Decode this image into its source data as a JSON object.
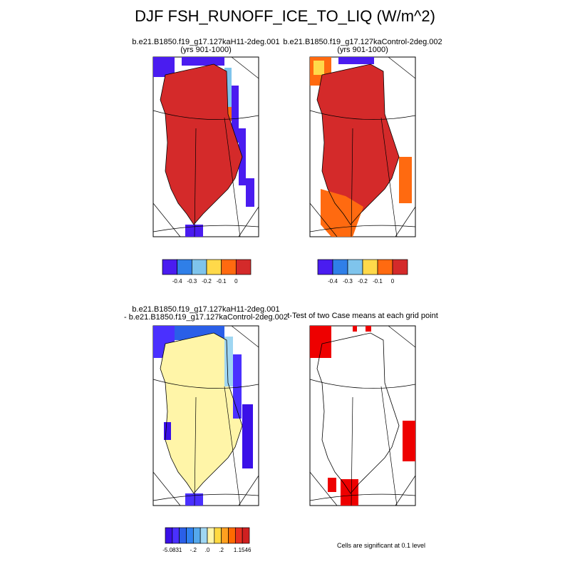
{
  "title": "DJF FSH_RUNOFF_ICE_TO_LIQ (W/m^2)",
  "panels": [
    {
      "title_lines": [
        "b.e21.B1850.f19_g17.127kaH11-2deg.001",
        "(yrs 901-1000)"
      ],
      "colorbar": {
        "colors": [
          "#4a1cf0",
          "#2f7fe8",
          "#7fc4ec",
          "#ffd94a",
          "#ff6a10",
          "#d42a2a"
        ],
        "labels": [
          "-0.4",
          "-0.3",
          "-0.2",
          "-0.1",
          "0"
        ]
      }
    },
    {
      "title_lines": [
        "b.e21.B1850.f19_g17.127kaControl-2deg.002",
        "(yrs 901-1000)"
      ],
      "colorbar": {
        "colors": [
          "#4a1cf0",
          "#2f7fe8",
          "#7fc4ec",
          "#ffd94a",
          "#ff6a10",
          "#d42a2a"
        ],
        "labels": [
          "-0.4",
          "-0.3",
          "-0.2",
          "-0.1",
          "0"
        ]
      }
    },
    {
      "title_lines": [
        "b.e21.B1850.f19_g17.127kaH11-2deg.001",
        "- b.e21.B1850.f19_g17.127kaControl-2deg.002"
      ],
      "colorbar": {
        "colors": [
          "#3a10e8",
          "#4a30ff",
          "#2a5fe8",
          "#2f80f0",
          "#55a8ec",
          "#9fd6f2",
          "#fff5a8",
          "#ffd940",
          "#ffa020",
          "#ff6a00",
          "#e83020",
          "#d02020"
        ],
        "labels": [
          "-5.0831",
          "-.2",
          ".0",
          ".2",
          "1.1546"
        ]
      }
    },
    {
      "title_lines": [
        "t-Test of two Case means at each grid point"
      ]
    }
  ],
  "note": "Cells are significant at 0.1 level"
}
